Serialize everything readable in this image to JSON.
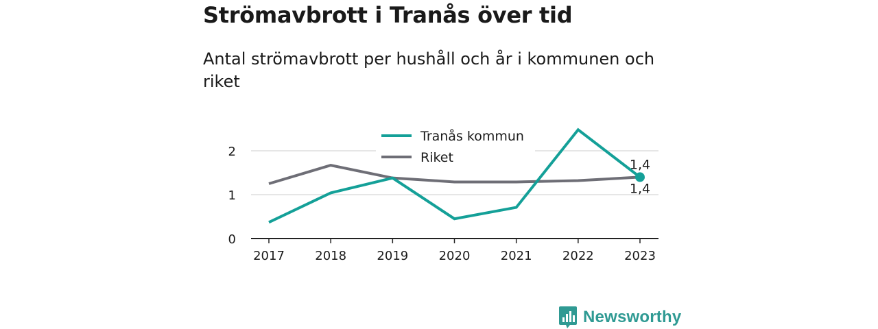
{
  "header": {
    "title": "Strömavbrott i Tranås över tid",
    "subtitle": "Antal strömavbrott per hushåll och år i kommunen och riket"
  },
  "brand": {
    "name": "Newsworthy",
    "icon": "newsworthy-chart-icon",
    "color": "#2f9a93"
  },
  "chart_data": {
    "type": "line",
    "x": [
      "2017",
      "2018",
      "2019",
      "2020",
      "2021",
      "2022",
      "2023"
    ],
    "series": [
      {
        "name": "Tranås kommun",
        "color": "#14a098",
        "values": [
          0.37,
          1.04,
          1.38,
          0.45,
          0.71,
          2.48,
          1.4
        ],
        "end_label": "1,4"
      },
      {
        "name": "Riket",
        "color": "#6e6e76",
        "values": [
          1.25,
          1.67,
          1.38,
          1.29,
          1.29,
          1.32,
          1.4
        ],
        "end_label": "1,4"
      }
    ],
    "y_ticks": [
      "0",
      "1",
      "2"
    ],
    "ylim": [
      0,
      2
    ],
    "grid": "horizontal",
    "legend_position": "top-center",
    "title": "Strömavbrott i Tranås över tid",
    "subtitle": "Antal strömavbrott per hushåll och år i kommunen och riket"
  }
}
